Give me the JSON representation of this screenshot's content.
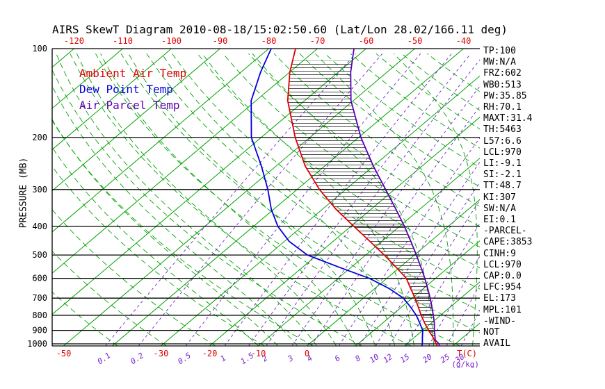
{
  "title": "AIRS SkewT Diagram 2010-08-18/15:02:50.60 (Lat/Lon 28.02/166.11 deg)",
  "colors": {
    "ambient": "#dd0000",
    "dewpoint": "#0000dd",
    "parcel": "#5a00b0",
    "isotherm": "#00a300",
    "mixing": "#7722cc",
    "temp_ticks": "#dd0000",
    "axis_text": "#000000"
  },
  "legend": [
    {
      "label": "Ambient Air Temp",
      "color": "#dd0000"
    },
    {
      "label": "Dew Point Temp",
      "color": "#0000dd"
    },
    {
      "label": "Air Parcel Temp",
      "color": "#5a00b0"
    }
  ],
  "stats_panel": [
    "TP:100",
    "MW:N/A",
    "FRZ:602",
    "WB0:513",
    "PW:35.85",
    "RH:70.1",
    "MAXT:31.4",
    "TH:5463",
    "L57:6.6",
    "LCL:970",
    "LI:-9.1",
    "SI:-2.1",
    "TT:48.7",
    "KI:307",
    "SW:N/A",
    "EI:0.1",
    "-PARCEL-",
    "CAPE:3853",
    "CINH:9",
    "LCL:970",
    "CAP:0.0",
    "LFC:954",
    "EL:173",
    "MPL:101",
    "-WIND-",
    "NOT",
    "AVAIL"
  ],
  "axes": {
    "pressure_label": "PRESSURE (MB)",
    "pressure_ticks": [
      100,
      200,
      300,
      400,
      500,
      600,
      700,
      800,
      900,
      1000
    ],
    "top_temp_ticks": [
      -120,
      -110,
      -100,
      -90,
      -80,
      -70,
      -60,
      -50,
      -40
    ],
    "bottom_temp_ticks": [
      -50,
      -30,
      -20,
      -10,
      0
    ],
    "temp_unit_label": "T(C)",
    "mixing_unit_label": "(g/kg)",
    "mixing_ratio_values": [
      0.1,
      0.2,
      0.5,
      1,
      1.5,
      2,
      3,
      4,
      6,
      8,
      10,
      12,
      15,
      20,
      25,
      30
    ]
  },
  "chart_data": {
    "type": "line",
    "variant": "skew-t-log-p",
    "x_axis": "Temperature (C)",
    "y_axis": "Pressure (MB)",
    "y_scale": "log",
    "pressure_range": [
      100,
      1016
    ],
    "hatch_pressure_range": [
      954,
      110
    ],
    "series": [
      {
        "name": "Ambient Air Temp",
        "color": "#dd0000",
        "points": [
          [
            1016,
            26.8
          ],
          [
            1000,
            26.0
          ],
          [
            950,
            23.8
          ],
          [
            900,
            21.2
          ],
          [
            850,
            18.6
          ],
          [
            800,
            16.0
          ],
          [
            750,
            13.4
          ],
          [
            700,
            10.6
          ],
          [
            650,
            7.4
          ],
          [
            600,
            4.0
          ],
          [
            550,
            -0.8
          ],
          [
            500,
            -6.2
          ],
          [
            450,
            -12.4
          ],
          [
            400,
            -19.4
          ],
          [
            350,
            -27.2
          ],
          [
            300,
            -35.4
          ],
          [
            250,
            -44.0
          ],
          [
            200,
            -53.0
          ],
          [
            150,
            -63.5
          ],
          [
            120,
            -70.0
          ],
          [
            100,
            -74.5
          ]
        ]
      },
      {
        "name": "Dew Point Temp",
        "color": "#0000dd",
        "points": [
          [
            1016,
            23.6
          ],
          [
            1000,
            23.2
          ],
          [
            950,
            21.6
          ],
          [
            900,
            20.0
          ],
          [
            850,
            17.6
          ],
          [
            800,
            15.0
          ],
          [
            750,
            11.8
          ],
          [
            700,
            8.2
          ],
          [
            650,
            3.0
          ],
          [
            600,
            -3.6
          ],
          [
            550,
            -12.5
          ],
          [
            500,
            -22.0
          ],
          [
            450,
            -29.0
          ],
          [
            400,
            -35.0
          ],
          [
            350,
            -40.5
          ],
          [
            300,
            -46.0
          ],
          [
            250,
            -53.0
          ],
          [
            200,
            -62.0
          ],
          [
            150,
            -71.0
          ],
          [
            120,
            -76.0
          ],
          [
            100,
            -79.5
          ]
        ]
      },
      {
        "name": "Air Parcel Temp",
        "color": "#5a00b0",
        "points": [
          [
            1016,
            27.2
          ],
          [
            1000,
            26.6
          ],
          [
            970,
            24.9
          ],
          [
            950,
            24.2
          ],
          [
            900,
            22.4
          ],
          [
            850,
            20.6
          ],
          [
            800,
            18.5
          ],
          [
            750,
            16.2
          ],
          [
            700,
            13.7
          ],
          [
            650,
            10.9
          ],
          [
            600,
            7.8
          ],
          [
            550,
            4.3
          ],
          [
            500,
            0.4
          ],
          [
            450,
            -4.0
          ],
          [
            400,
            -9.0
          ],
          [
            350,
            -14.9
          ],
          [
            300,
            -21.8
          ],
          [
            250,
            -30.0
          ],
          [
            200,
            -39.5
          ],
          [
            150,
            -50.5
          ],
          [
            120,
            -57.5
          ],
          [
            100,
            -62.5
          ]
        ]
      }
    ]
  }
}
